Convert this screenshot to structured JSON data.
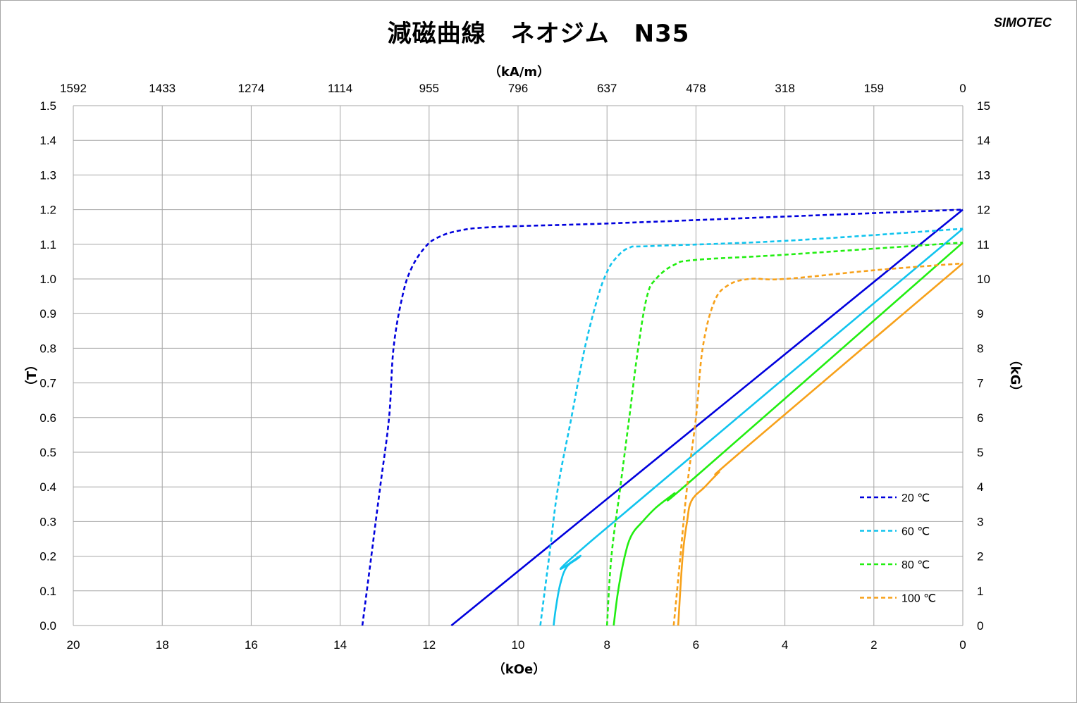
{
  "title": "減磁曲線　ネオジム　N35",
  "brand": "SIMOTEC",
  "colors": {
    "c20": "#0000dd",
    "c60": "#11c4ee",
    "c80": "#22ee11",
    "c100": "#f7a11a",
    "grid": "#a6a6a6"
  },
  "chart_data": {
    "type": "line",
    "title": "減磁曲線　ネオジム　N35",
    "xlabel": "（kOe）",
    "x2label": "（kA/m）",
    "ylabel": "（T）",
    "y2label": "（kG）",
    "xlim": [
      20,
      0
    ],
    "ylim": [
      0,
      1.5
    ],
    "x_reversed": true,
    "grid": true,
    "legend_position": "bottom-right",
    "x_ticks": [
      "20",
      "18",
      "16",
      "14",
      "12",
      "10",
      "8",
      "6",
      "4",
      "2",
      "0"
    ],
    "x2_ticks": [
      "1592",
      "1433",
      "1274",
      "1114",
      "955",
      "796",
      "637",
      "478",
      "318",
      "159",
      "0"
    ],
    "y_ticks": [
      "0.0",
      "0.1",
      "0.2",
      "0.3",
      "0.4",
      "0.5",
      "0.6",
      "0.7",
      "0.8",
      "0.9",
      "1.0",
      "1.1",
      "1.2",
      "1.3",
      "1.4",
      "1.5"
    ],
    "y2_ticks": [
      "0",
      "1",
      "2",
      "3",
      "4",
      "5",
      "6",
      "7",
      "8",
      "9",
      "10",
      "11",
      "12",
      "13",
      "14",
      "15"
    ],
    "series": [
      {
        "name": "20 ℃",
        "kind": "J",
        "style": "dashed",
        "color": "#0000dd",
        "points": [
          [
            13.5,
            0.0
          ],
          [
            13.3,
            0.2
          ],
          [
            13.1,
            0.4
          ],
          [
            12.9,
            0.6
          ],
          [
            12.8,
            0.8
          ],
          [
            12.6,
            0.95
          ],
          [
            12.4,
            1.03
          ],
          [
            12.1,
            1.09
          ],
          [
            11.8,
            1.12
          ],
          [
            11.3,
            1.14
          ],
          [
            10.5,
            1.15
          ],
          [
            8,
            1.16
          ],
          [
            4,
            1.18
          ],
          [
            0,
            1.2
          ]
        ]
      },
      {
        "name": "",
        "kind": "B",
        "style": "solid",
        "color": "#0000dd",
        "points": [
          [
            11.5,
            0.0
          ],
          [
            0,
            1.2
          ]
        ]
      },
      {
        "name": "60 ℃",
        "kind": "J",
        "style": "dashed",
        "color": "#11c4ee",
        "points": [
          [
            9.5,
            0.0
          ],
          [
            9.3,
            0.2
          ],
          [
            9.1,
            0.4
          ],
          [
            8.8,
            0.6
          ],
          [
            8.5,
            0.8
          ],
          [
            8.2,
            0.95
          ],
          [
            8.0,
            1.02
          ],
          [
            7.8,
            1.06
          ],
          [
            7.5,
            1.09
          ],
          [
            7.0,
            1.095
          ],
          [
            4,
            1.11
          ],
          [
            0,
            1.145
          ]
        ]
      },
      {
        "name": "",
        "kind": "B",
        "style": "solid",
        "color": "#11c4ee",
        "points": [
          [
            9.2,
            0.0
          ],
          [
            9.15,
            0.05
          ],
          [
            9.05,
            0.12
          ],
          [
            8.9,
            0.17
          ],
          [
            8.6,
            0.2
          ],
          [
            8.3,
            0.25
          ],
          [
            0,
            1.145
          ]
        ]
      },
      {
        "name": "80 ℃",
        "kind": "J",
        "style": "dashed",
        "color": "#22ee11",
        "points": [
          [
            8.0,
            0.0
          ],
          [
            7.9,
            0.2
          ],
          [
            7.7,
            0.4
          ],
          [
            7.5,
            0.6
          ],
          [
            7.3,
            0.8
          ],
          [
            7.1,
            0.95
          ],
          [
            6.9,
            1.0
          ],
          [
            6.5,
            1.04
          ],
          [
            6.0,
            1.055
          ],
          [
            4,
            1.07
          ],
          [
            0,
            1.105
          ]
        ]
      },
      {
        "name": "",
        "kind": "B",
        "style": "solid",
        "color": "#22ee11",
        "points": [
          [
            7.85,
            0.0
          ],
          [
            7.75,
            0.1
          ],
          [
            7.6,
            0.2
          ],
          [
            7.45,
            0.26
          ],
          [
            7.2,
            0.3
          ],
          [
            6.9,
            0.34
          ],
          [
            6.5,
            0.38
          ],
          [
            6.0,
            0.43
          ],
          [
            0,
            1.105
          ]
        ]
      },
      {
        "name": "100 ℃",
        "kind": "J",
        "style": "dashed",
        "color": "#f7a11a",
        "points": [
          [
            6.5,
            0.0
          ],
          [
            6.35,
            0.2
          ],
          [
            6.2,
            0.4
          ],
          [
            6.0,
            0.6
          ],
          [
            5.85,
            0.8
          ],
          [
            5.6,
            0.93
          ],
          [
            5.3,
            0.98
          ],
          [
            4.8,
            1.0
          ],
          [
            4.0,
            1.0
          ],
          [
            2,
            1.025
          ],
          [
            0,
            1.045
          ]
        ]
      },
      {
        "name": "",
        "kind": "B",
        "style": "solid",
        "color": "#f7a11a",
        "points": [
          [
            6.4,
            0.0
          ],
          [
            6.3,
            0.2
          ],
          [
            6.2,
            0.3
          ],
          [
            6.1,
            0.36
          ],
          [
            5.8,
            0.4
          ],
          [
            5.5,
            0.44
          ],
          [
            5.0,
            0.5
          ],
          [
            0,
            1.045
          ]
        ]
      }
    ]
  }
}
